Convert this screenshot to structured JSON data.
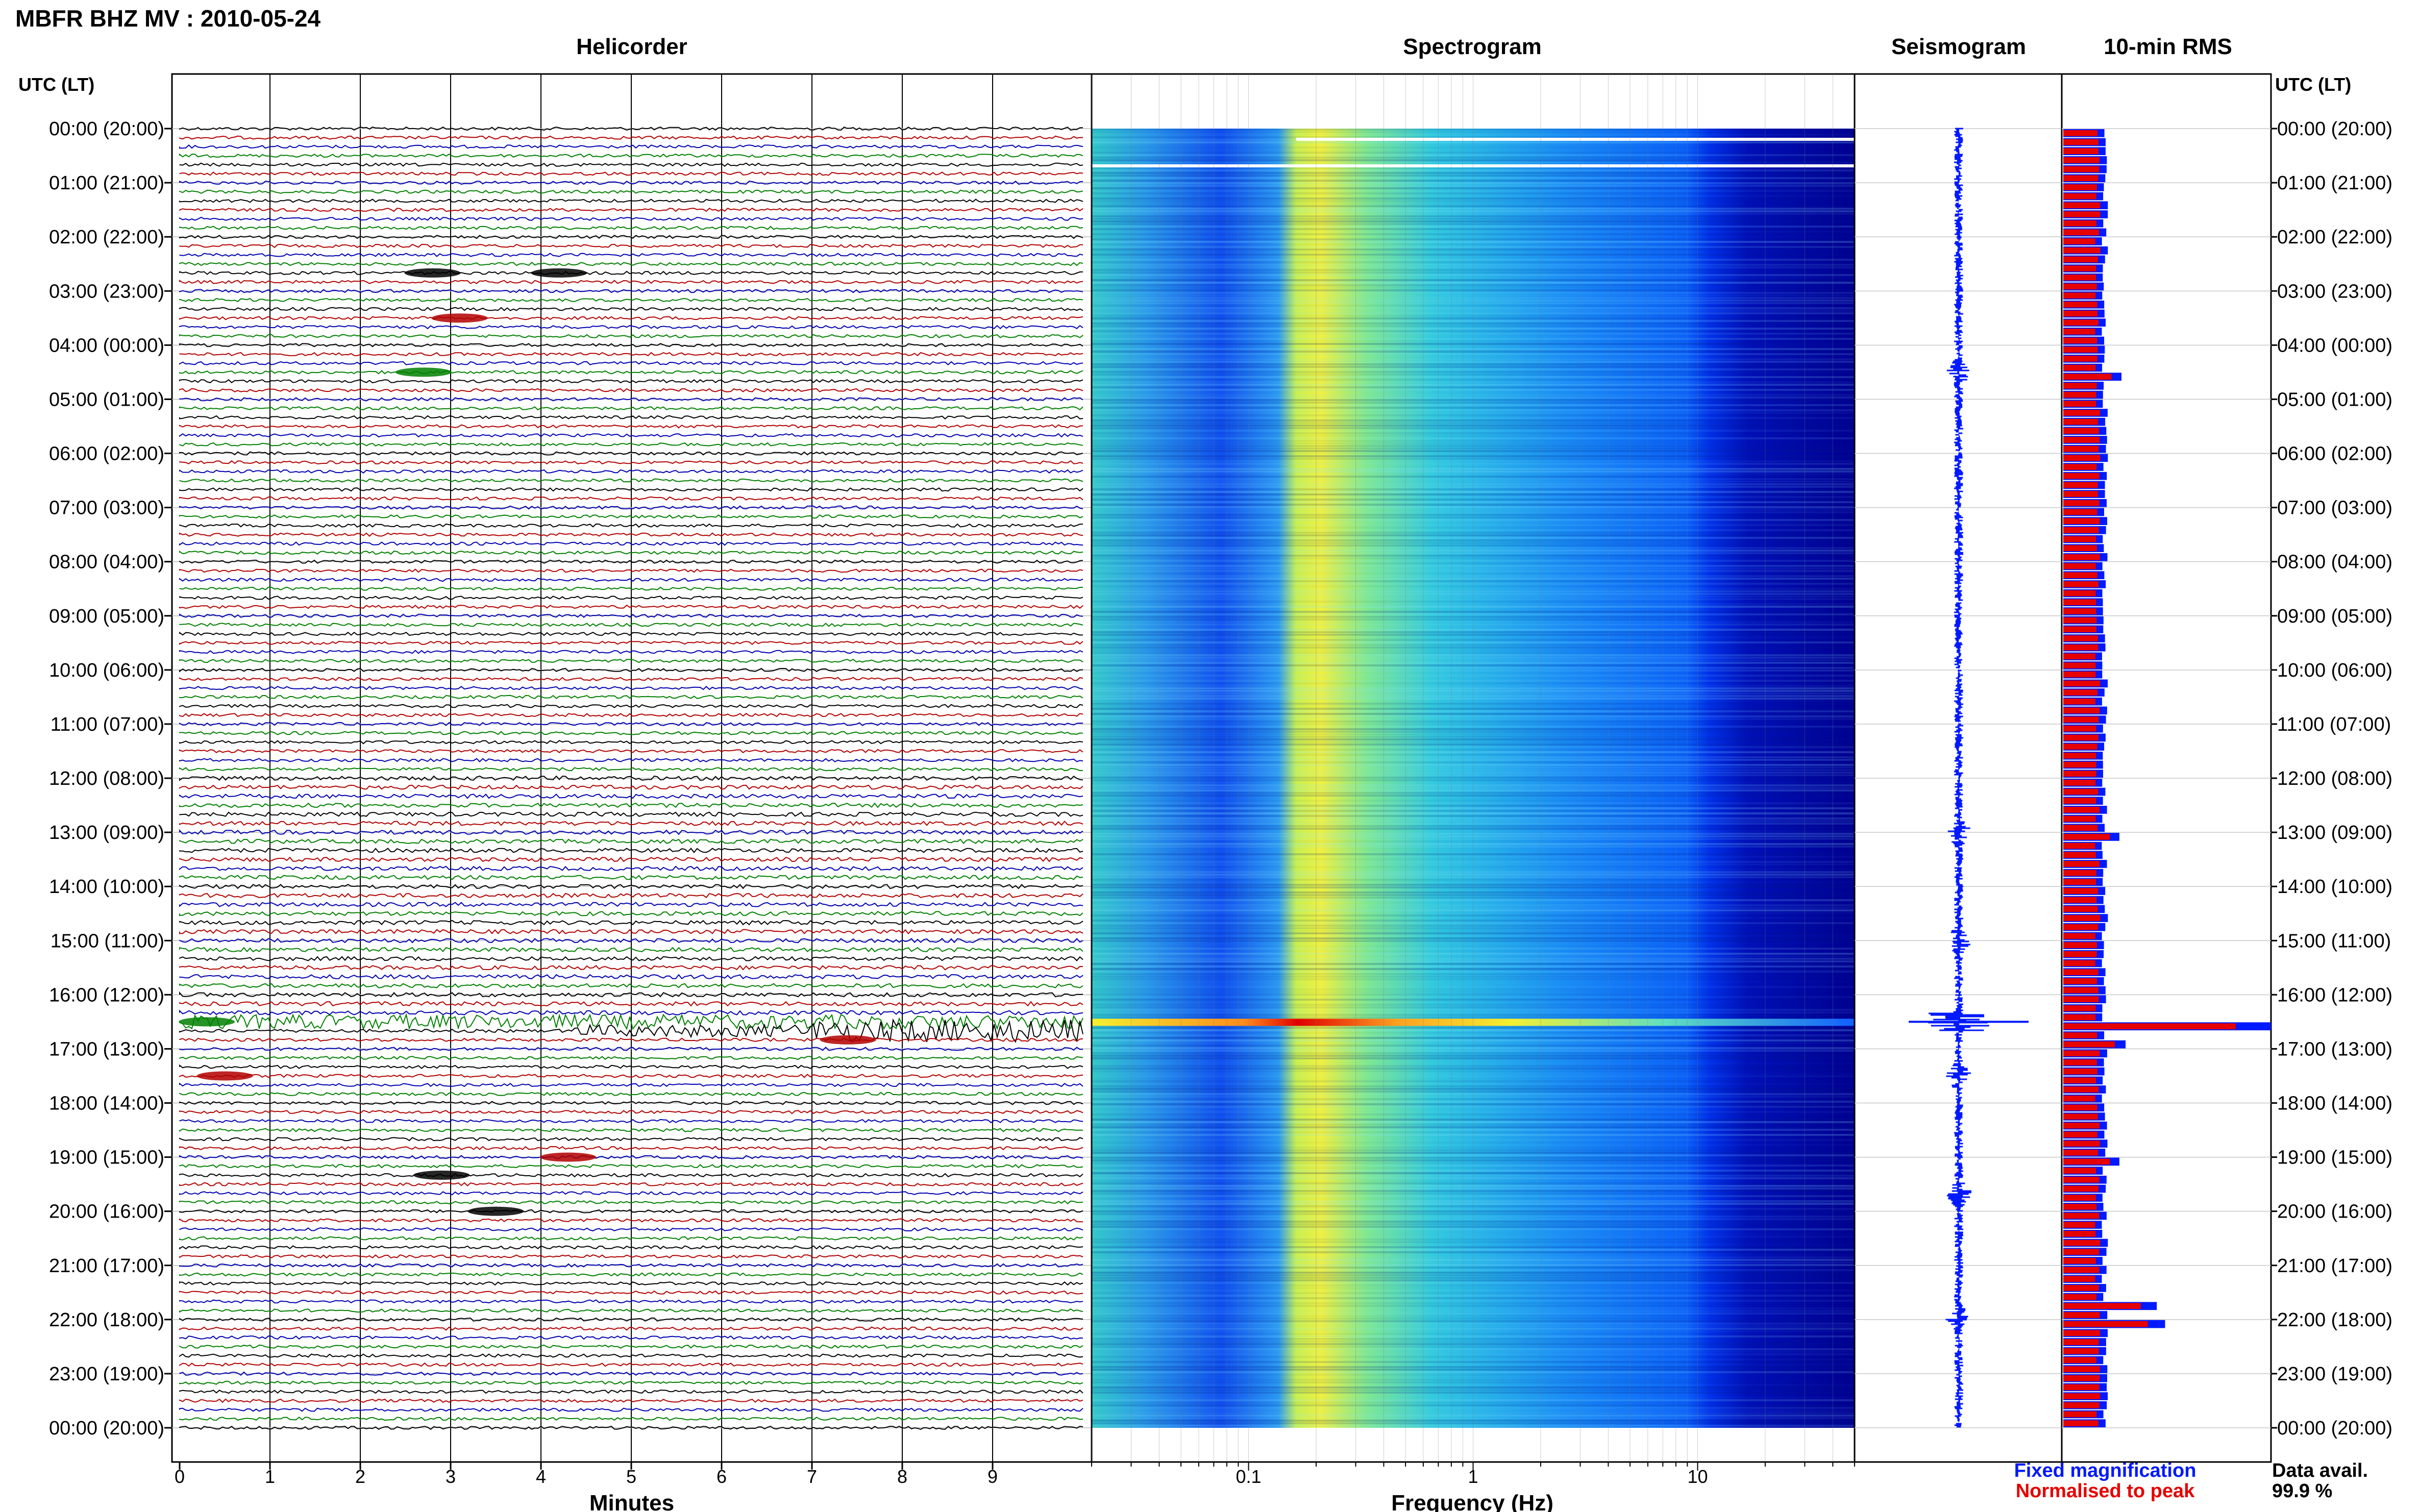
{
  "header": {
    "title": "MBFR BHZ MV : 2010-05-24",
    "utc_label_left": "UTC (LT)",
    "utc_label_right": "UTC (LT)"
  },
  "panels": {
    "helicorder": "Helicorder",
    "spectrogram": "Spectrogram",
    "seismogram": "Seismogram",
    "rms": "10-min RMS"
  },
  "time_labels": [
    "00:00 (20:00)",
    "01:00 (21:00)",
    "02:00 (22:00)",
    "03:00 (23:00)",
    "04:00 (00:00)",
    "05:00 (01:00)",
    "06:00 (02:00)",
    "07:00 (03:00)",
    "08:00 (04:00)",
    "09:00 (05:00)",
    "10:00 (06:00)",
    "11:00 (07:00)",
    "12:00 (08:00)",
    "13:00 (09:00)",
    "14:00 (10:00)",
    "15:00 (11:00)",
    "16:00 (12:00)",
    "17:00 (13:00)",
    "18:00 (14:00)",
    "19:00 (15:00)",
    "20:00 (16:00)",
    "21:00 (17:00)",
    "22:00 (18:00)",
    "23:00 (19:00)",
    "00:00 (20:00)"
  ],
  "legend": {
    "fixed": "Fixed magnification",
    "normalised": "Normalised to peak",
    "colors": {
      "fixed": "#0019ff",
      "normalised": "#e60000"
    }
  },
  "availability": {
    "label": "Data avail.",
    "value": "99.9 %"
  },
  "chart_data": [
    {
      "type": "line",
      "name": "helicorder",
      "title": "Helicorder",
      "xlabel": "Minutes",
      "x_ticks": [
        "0",
        "1",
        "2",
        "3",
        "4",
        "5",
        "6",
        "7",
        "8",
        "9"
      ],
      "xlim": [
        0,
        10
      ],
      "rows_per_hour": 6,
      "trace_colors": [
        "#000000",
        "#b30000",
        "#0000b3",
        "#008000"
      ],
      "events": [
        {
          "time": "02:40",
          "minute": 2.8,
          "color": "#000000"
        },
        {
          "time": "02:40",
          "minute": 4.2,
          "color": "#000000"
        },
        {
          "time": "03:30",
          "minute": 3.1,
          "color": "#b30000"
        },
        {
          "time": "04:30",
          "minute": 2.7,
          "color": "#008000"
        },
        {
          "time": "16:30",
          "minute": 0.3,
          "color": "#008000"
        },
        {
          "time": "16:50",
          "minute": 7.4,
          "color": "#b30000"
        },
        {
          "time": "17:30",
          "minute": 0.5,
          "color": "#b30000"
        },
        {
          "time": "19:00",
          "minute": 4.3,
          "color": "#b30000"
        },
        {
          "time": "19:20",
          "minute": 2.9,
          "color": "#000000"
        },
        {
          "time": "20:00",
          "minute": 3.5,
          "color": "#000000"
        }
      ]
    },
    {
      "type": "heatmap",
      "name": "spectrogram",
      "title": "Spectrogram",
      "xlabel": "Frequency (Hz)",
      "x_scale": "log",
      "xlim": [
        0.02,
        50
      ],
      "x_ticks": [
        "0.1",
        "1",
        "10"
      ],
      "colormap": [
        "#00008c",
        "#0022ff",
        "#0aa0ff",
        "#30e0d8",
        "#a8f060",
        "#f4f030",
        "#ff8c1a",
        "#e00000"
      ],
      "peak_band_hz": 0.2,
      "strong_event_time": "16:30"
    },
    {
      "type": "line",
      "name": "seismogram",
      "title": "Seismogram",
      "color": "#0019ff",
      "burst_times": [
        "04:30",
        "13:00",
        "15:00",
        "16:30",
        "17:30",
        "19:40",
        "22:00"
      ]
    },
    {
      "type": "bar",
      "name": "rms",
      "title": "10-min RMS",
      "orientation": "horizontal",
      "series": [
        {
          "name": "Fixed magnification",
          "color": "#0019ff"
        },
        {
          "name": "Normalised to peak",
          "color": "#e60000"
        }
      ],
      "interval_minutes": 10,
      "baseline_level": 0.2,
      "peaks": [
        {
          "time": "04:30",
          "level": 0.28
        },
        {
          "time": "13:00",
          "level": 0.27
        },
        {
          "time": "16:30",
          "level": 1.0
        },
        {
          "time": "16:50",
          "level": 0.3
        },
        {
          "time": "19:00",
          "level": 0.27
        },
        {
          "time": "21:40",
          "level": 0.45
        },
        {
          "time": "22:00",
          "level": 0.49
        }
      ]
    }
  ]
}
